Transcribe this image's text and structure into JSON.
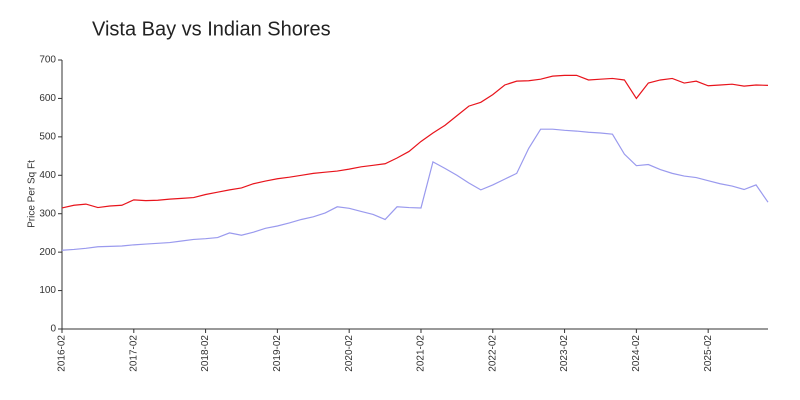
{
  "chart_data": {
    "type": "line",
    "title": "Vista Bay vs Indian Shores",
    "y_label": "Price Per Sq Ft",
    "x": [
      "2016-02",
      "2016-04",
      "2016-06",
      "2016-08",
      "2016-10",
      "2016-12",
      "2017-02",
      "2017-04",
      "2017-06",
      "2017-08",
      "2017-10",
      "2017-12",
      "2018-02",
      "2018-04",
      "2018-06",
      "2018-08",
      "2018-10",
      "2018-12",
      "2019-02",
      "2019-04",
      "2019-06",
      "2019-08",
      "2019-10",
      "2019-12",
      "2020-02",
      "2020-04",
      "2020-06",
      "2020-08",
      "2020-10",
      "2020-12",
      "2021-02",
      "2021-04",
      "2021-06",
      "2021-08",
      "2021-10",
      "2021-12",
      "2022-02",
      "2022-04",
      "2022-06",
      "2022-08",
      "2022-10",
      "2022-12",
      "2023-02",
      "2023-04",
      "2023-06",
      "2023-08",
      "2023-10",
      "2023-12",
      "2024-02",
      "2024-04",
      "2024-06",
      "2024-08",
      "2024-10",
      "2024-12",
      "2025-02",
      "2025-04",
      "2025-06",
      "2025-08",
      "2025-10",
      "2025-12"
    ],
    "series": [
      {
        "color": "#e8141c",
        "values": [
          315,
          322,
          325,
          316,
          320,
          322,
          336,
          334,
          335,
          338,
          340,
          342,
          350,
          356,
          362,
          367,
          378,
          385,
          391,
          395,
          400,
          405,
          408,
          411,
          416,
          422,
          426,
          430,
          445,
          462,
          488,
          510,
          530,
          555,
          580,
          590,
          610,
          635,
          645,
          646,
          650,
          658,
          660,
          660,
          648,
          650,
          652,
          648,
          600,
          640,
          648,
          652,
          640,
          645,
          633,
          635,
          637,
          632,
          635,
          634
        ]
      },
      {
        "color": "#9a9aee",
        "values": [
          205,
          207,
          210,
          214,
          215,
          216,
          219,
          221,
          223,
          225,
          229,
          233,
          235,
          238,
          250,
          244,
          252,
          262,
          268,
          276,
          285,
          292,
          302,
          318,
          314,
          306,
          298,
          285,
          318,
          316,
          315,
          435,
          418,
          400,
          380,
          362,
          375,
          390,
          405,
          470,
          520,
          520,
          517,
          515,
          512,
          510,
          507,
          455,
          425,
          428,
          415,
          405,
          398,
          394,
          386,
          378,
          372,
          363,
          375,
          330
        ]
      }
    ],
    "xlim": [
      "2016-02",
      "2025-12"
    ],
    "xticks": [
      "2016-02",
      "2017-02",
      "2018-02",
      "2019-02",
      "2020-02",
      "2021-02",
      "2022-02",
      "2023-02",
      "2024-02",
      "2025-02"
    ],
    "ylim": [
      0,
      700
    ],
    "yticks": [
      0,
      100,
      200,
      300,
      400,
      500,
      600,
      700
    ]
  }
}
